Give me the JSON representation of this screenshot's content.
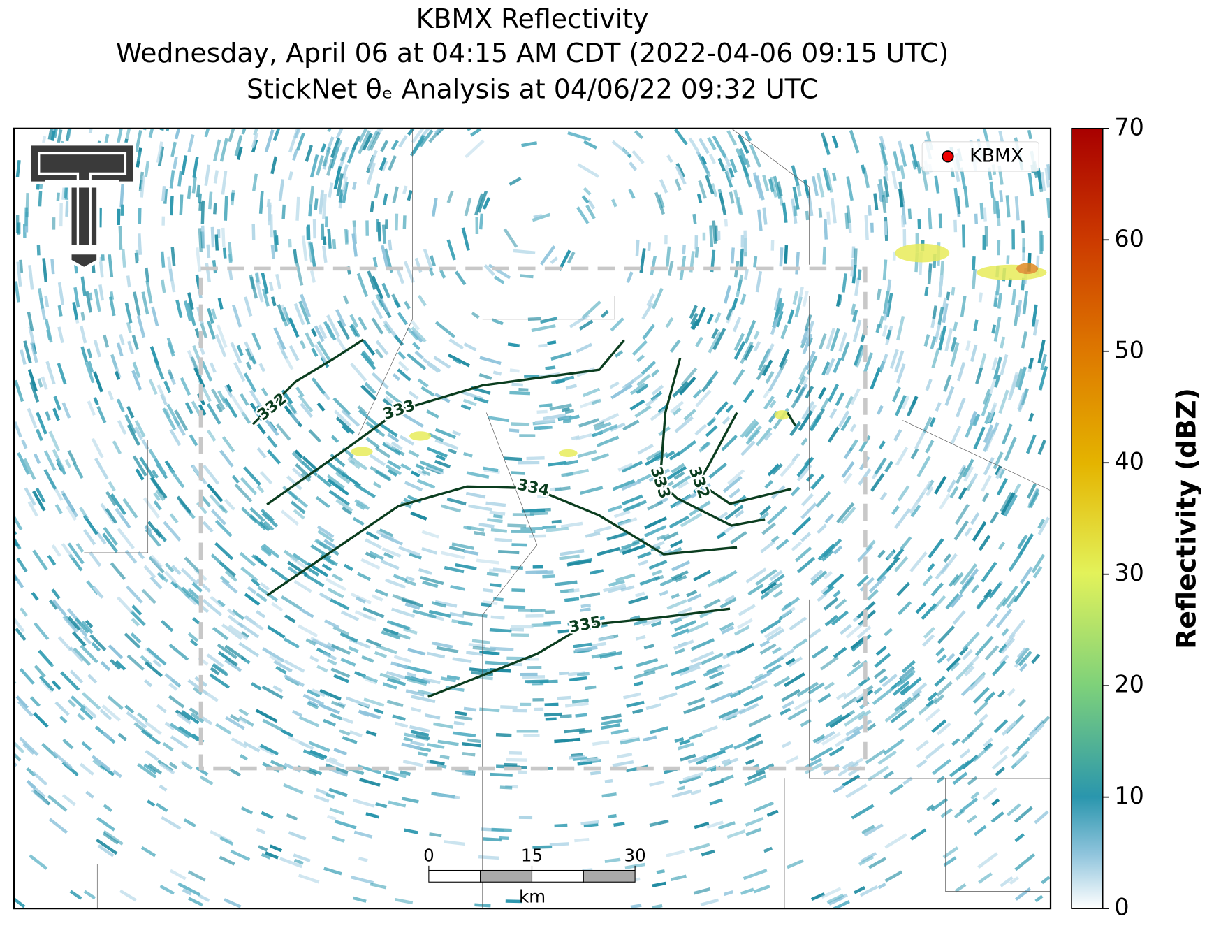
{
  "header": {
    "title": "KBMX Reflectivity",
    "subtitle": "Wednesday, April 06 at 04:15 AM CDT (2022-04-06 09:15 UTC)",
    "analysis": "StickNet θₑ Analysis at 04/06/22 09:32 UTC"
  },
  "map": {
    "contour_labels": [
      "332",
      "333",
      "334",
      "335",
      "333",
      "332"
    ],
    "legend": "KBMX"
  },
  "scale_bar": {
    "ticks": [
      0,
      15,
      30
    ],
    "range": [
      0,
      30
    ],
    "unit": "km"
  },
  "colorbar": {
    "label": "Reflectivity (dBZ)",
    "lim": [
      0,
      70
    ],
    "ticks": [
      0,
      10,
      20,
      30,
      40,
      50,
      60,
      70
    ]
  }
}
